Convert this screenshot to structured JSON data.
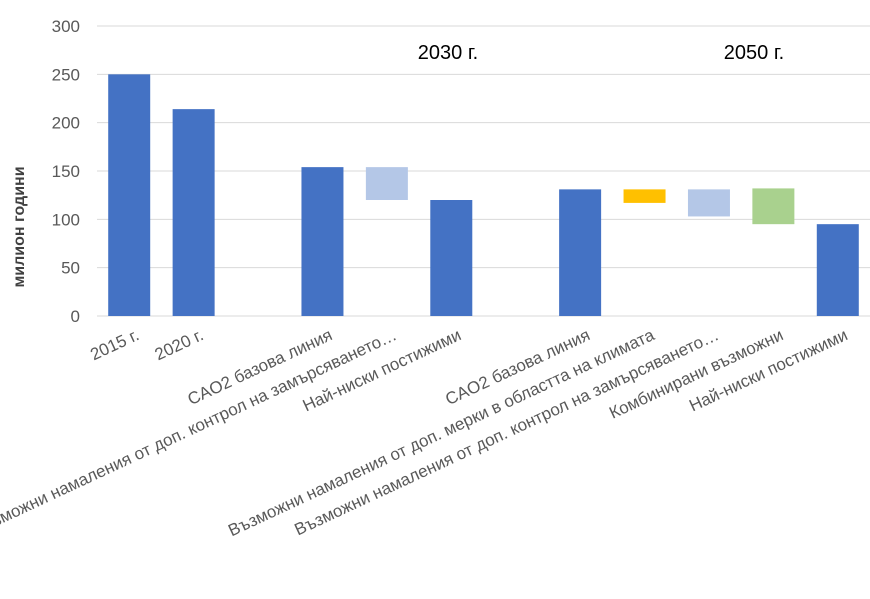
{
  "chart_data": {
    "type": "bar",
    "ylabel": "милион години",
    "ylim": [
      0,
      300
    ],
    "yticks": [
      "0",
      "50",
      "100",
      "150",
      "200",
      "250",
      "300"
    ],
    "grid": true,
    "legend": "none",
    "annotations": [
      {
        "label": "2030 г.",
        "group": "2030"
      },
      {
        "label": "2050 г.",
        "group": "2050"
      }
    ],
    "categories": [
      "2015 г.",
      "2020 г.",
      "",
      "CAO2 базова линия",
      "Възможни намаления от доп. контрол на замърсяването…",
      "Най-ниски постижими",
      "",
      "CAO2 базова линия",
      "Възможни намаления от доп. мерки в областта на климата",
      "Възможни намаления от доп. контрол на замърсяването…",
      "Комбинирани възможни",
      "Най-ниски постижими"
    ],
    "bars": [
      {
        "base": 0,
        "top": 250,
        "color": "#4472c4"
      },
      {
        "base": 0,
        "top": 214,
        "color": "#4472c4"
      },
      null,
      {
        "base": 0,
        "top": 154,
        "color": "#4472c4"
      },
      {
        "base": 120,
        "top": 154,
        "color": "#b4c7e7"
      },
      {
        "base": 0,
        "top": 120,
        "color": "#4472c4"
      },
      null,
      {
        "base": 0,
        "top": 131,
        "color": "#4472c4"
      },
      {
        "base": 117,
        "top": 131,
        "color": "#ffc000"
      },
      {
        "base": 103,
        "top": 131,
        "color": "#b4c7e7"
      },
      {
        "base": 95,
        "top": 132,
        "color": "#a9d18e"
      },
      {
        "base": 0,
        "top": 95,
        "color": "#4472c4"
      }
    ]
  }
}
